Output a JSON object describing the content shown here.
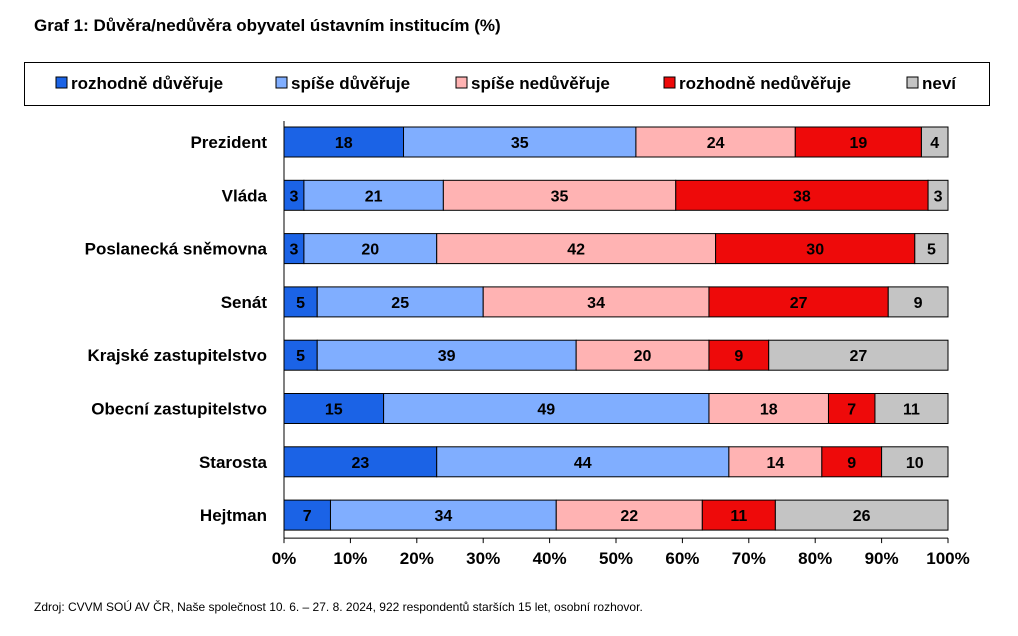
{
  "chart_data": {
    "type": "bar",
    "orientation": "horizontal",
    "stacked": true,
    "title": "Graf 1: Důvěra/nedůvěra obyvatel ústavním institucím (%)",
    "source": "Zdroj: CVVM SOÚ AV ČR, Naše společnost 10. 6. – 27. 8. 2024, 922 respondentů starších 15 let, osobní rozhovor.",
    "categories": [
      "Prezident",
      "Vláda",
      "Poslanecká sněmovna",
      "Senát",
      "Krajské zastupitelstvo",
      "Obecní zastupitelstvo",
      "Starosta",
      "Hejtman"
    ],
    "series": [
      {
        "name": "rozhodně důvěřuje",
        "color": "#1b63e6",
        "values": [
          18,
          3,
          3,
          5,
          5,
          15,
          23,
          7
        ]
      },
      {
        "name": "spíše důvěřuje",
        "color": "#80aeff",
        "values": [
          35,
          21,
          20,
          25,
          39,
          49,
          44,
          34
        ]
      },
      {
        "name": "spíše nedůvěřuje",
        "color": "#ffb3b3",
        "values": [
          24,
          35,
          42,
          34,
          20,
          18,
          14,
          22
        ]
      },
      {
        "name": "rozhodně nedůvěřuje",
        "color": "#ee0a0a",
        "values": [
          19,
          38,
          30,
          27,
          9,
          7,
          9,
          11
        ]
      },
      {
        "name": "neví",
        "color": "#c4c4c4",
        "values": [
          4,
          3,
          5,
          9,
          27,
          11,
          10,
          26
        ]
      }
    ],
    "xlim": [
      0,
      100
    ],
    "xticks": [
      "0%",
      "10%",
      "20%",
      "30%",
      "40%",
      "50%",
      "60%",
      "70%",
      "80%",
      "90%",
      "100%"
    ],
    "legend": "top",
    "grid": false
  }
}
